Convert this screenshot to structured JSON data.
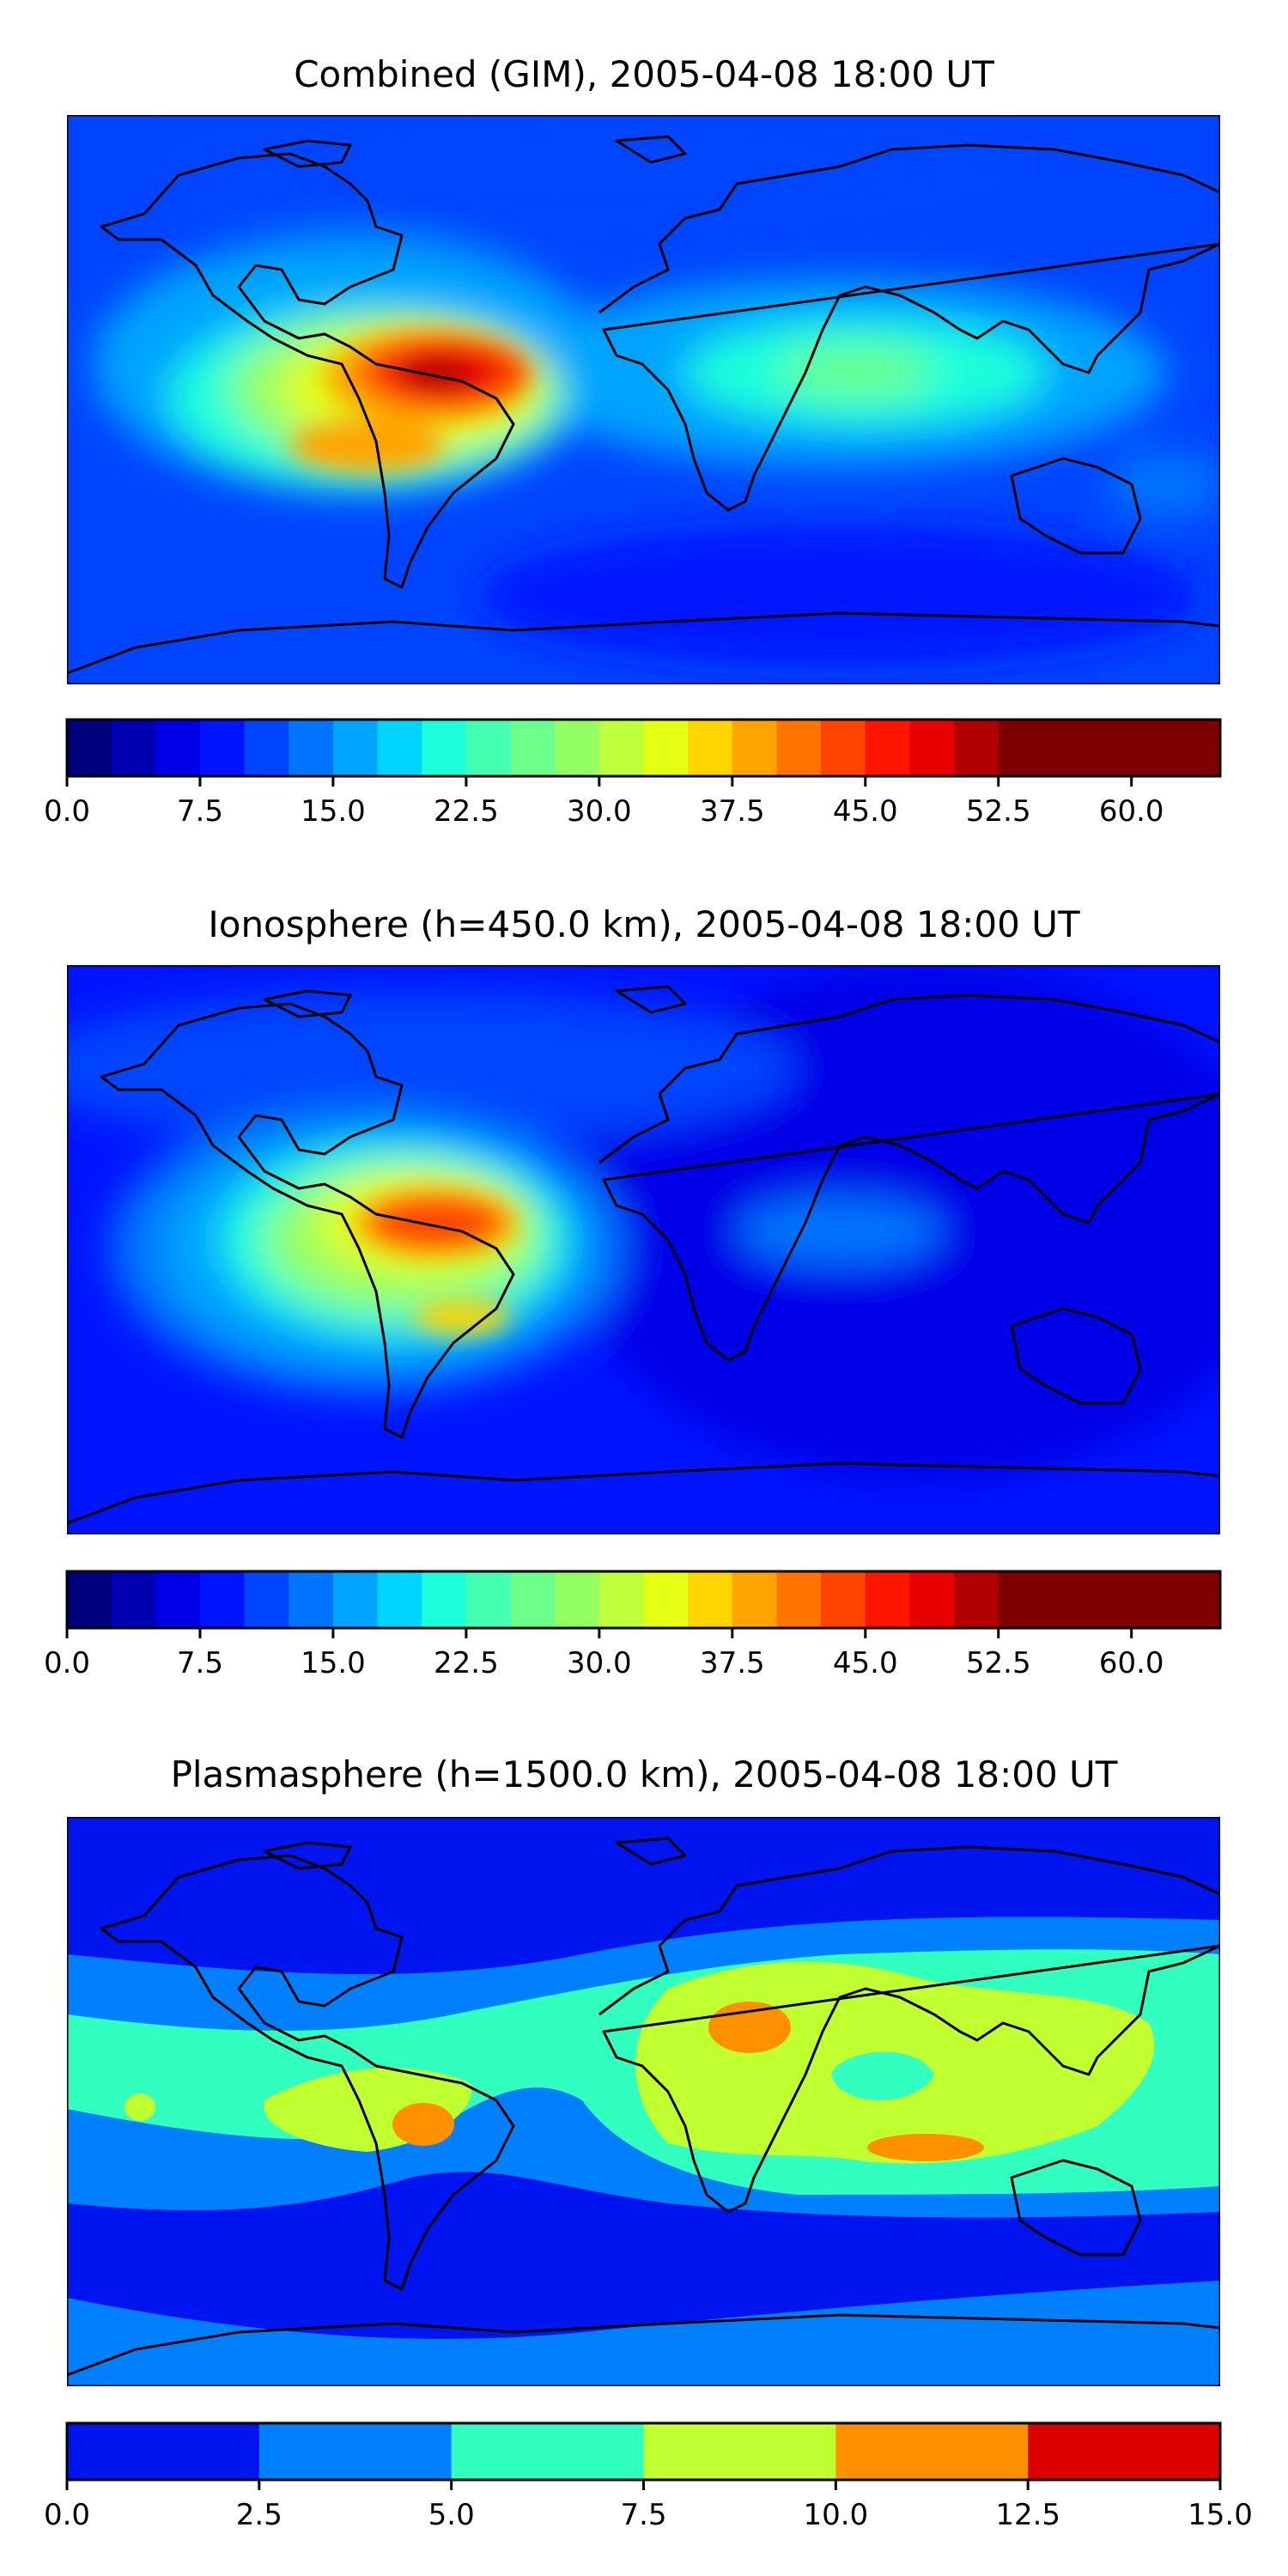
{
  "panels": [
    {
      "title": "Combined (GIM), 2005-04-08 18:00 UT",
      "colorbar": {
        "levels": [
          0.0,
          2.5,
          5.0,
          7.5,
          10.0,
          12.5,
          15.0,
          17.5,
          20.0,
          22.5,
          25.0,
          27.5,
          30.0,
          32.5,
          35.0,
          37.5,
          40.0,
          42.5,
          45.0,
          47.5,
          50.0,
          52.5,
          55.0,
          57.5,
          60.0,
          62.5,
          65.0
        ],
        "ticks": [
          "0.0",
          "7.5",
          "15.0",
          "22.5",
          "30.0",
          "37.5",
          "45.0",
          "52.5",
          "60.0"
        ],
        "tick_values": [
          0.0,
          7.5,
          15.0,
          22.5,
          30.0,
          37.5,
          45.0,
          52.5,
          60.0
        ],
        "colors": [
          "#00007f",
          "#0000b2",
          "#0000e8",
          "#0014ff",
          "#0044ff",
          "#0074ff",
          "#00a4ff",
          "#00d4ff",
          "#1cffda",
          "#44ffb2",
          "#6cff8a",
          "#94ff62",
          "#bcff3a",
          "#e4ff12",
          "#ffd400",
          "#ffa400",
          "#ff7400",
          "#ff4400",
          "#ff1400",
          "#e80000",
          "#b20000",
          "#7f0000",
          "#7f0000",
          "#7f0000",
          "#7f0000",
          "#7f0000"
        ]
      }
    },
    {
      "title": "Ionosphere  (h=450.0 km), 2005-04-08 18:00 UT",
      "colorbar": {
        "levels": [
          0.0,
          2.5,
          5.0,
          7.5,
          10.0,
          12.5,
          15.0,
          17.5,
          20.0,
          22.5,
          25.0,
          27.5,
          30.0,
          32.5,
          35.0,
          37.5,
          40.0,
          42.5,
          45.0,
          47.5,
          50.0,
          52.5,
          55.0,
          57.5,
          60.0,
          62.5,
          65.0
        ],
        "ticks": [
          "0.0",
          "7.5",
          "15.0",
          "22.5",
          "30.0",
          "37.5",
          "45.0",
          "52.5",
          "60.0"
        ],
        "tick_values": [
          0.0,
          7.5,
          15.0,
          22.5,
          30.0,
          37.5,
          45.0,
          52.5,
          60.0
        ],
        "colors": [
          "#00007f",
          "#0000b2",
          "#0000e8",
          "#0014ff",
          "#0044ff",
          "#0074ff",
          "#00a4ff",
          "#00d4ff",
          "#1cffda",
          "#44ffb2",
          "#6cff8a",
          "#94ff62",
          "#bcff3a",
          "#e4ff12",
          "#ffd400",
          "#ffa400",
          "#ff7400",
          "#ff4400",
          "#ff1400",
          "#e80000",
          "#b20000",
          "#7f0000",
          "#7f0000",
          "#7f0000",
          "#7f0000",
          "#7f0000"
        ]
      }
    },
    {
      "title": "Plasmasphere (h=1500.0 km), 2005-04-08 18:00 UT",
      "colorbar": {
        "levels": [
          0.0,
          2.5,
          5.0,
          7.5,
          10.0,
          12.5,
          15.0
        ],
        "ticks": [
          "0.0",
          "2.5",
          "5.0",
          "7.5",
          "10.0",
          "12.5",
          "15.0"
        ],
        "tick_values": [
          0.0,
          2.5,
          5.0,
          7.5,
          10.0,
          12.5,
          15.0
        ],
        "colors": [
          "#0014f0",
          "#0080ff",
          "#30ffc0",
          "#c0ff30",
          "#ff9000",
          "#dd0000"
        ]
      }
    }
  ]
}
